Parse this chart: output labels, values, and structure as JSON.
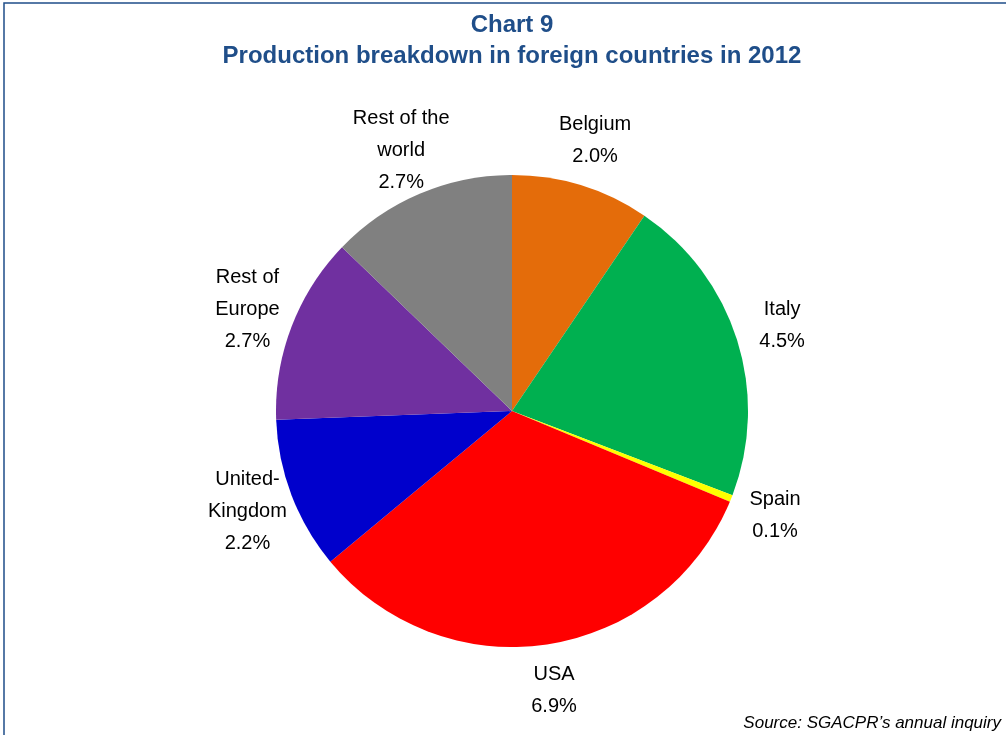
{
  "chart_data": {
    "type": "pie",
    "title": "Chart 9",
    "subtitle": "Production breakdown in foreign countries in 2012",
    "categories": [
      "Belgium",
      "Italy",
      "Spain",
      "USA",
      "United-Kingdom",
      "Rest of Europe",
      "Rest of the world"
    ],
    "values": [
      2.0,
      4.5,
      0.1,
      6.9,
      2.2,
      2.7,
      2.7
    ],
    "value_labels": [
      "2.0%",
      "4.5%",
      "0.1%",
      "6.9%",
      "2.2%",
      "2.7%",
      "2.7%"
    ],
    "colors": [
      "#e46c0a",
      "#00b050",
      "#ffff00",
      "#ff0000",
      "#0000cc",
      "#7030a0",
      "#808080"
    ],
    "legend": false,
    "annotations": [
      "Source: SGACPR’s annual inquiry"
    ]
  }
}
